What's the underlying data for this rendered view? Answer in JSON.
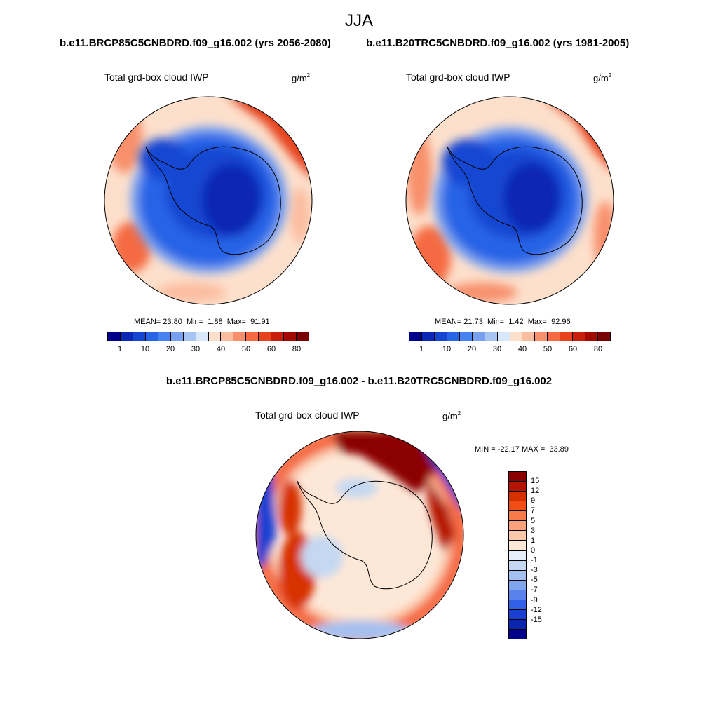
{
  "season": "JJA",
  "panels": [
    {
      "title": "b.e11.BRCP85C5CNBDRD.f09_g16.002 (yrs 2056-2080)",
      "variable": "Total grd-box cloud IWP",
      "units_base": "g/m",
      "units_exp": "2",
      "stats": {
        "mean_label": "MEAN=",
        "mean": "23.80",
        "min_label": "Min=",
        "min": "1.88",
        "max_label": "Max=",
        "max": "91.91"
      }
    },
    {
      "title": "b.e11.B20TRC5CNBDRD.f09_g16.002 (yrs 1981-2005)",
      "variable": "Total grd-box cloud IWP",
      "units_base": "g/m",
      "units_exp": "2",
      "stats": {
        "mean_label": "MEAN=",
        "mean": "21.73",
        "min_label": "Min=",
        "min": "1.42",
        "max_label": "Max=",
        "max": "92.96"
      }
    }
  ],
  "diff_panel": {
    "title": "b.e11.BRCP85C5CNBDRD.f09_g16.002 - b.e11.B20TRC5CNBDRD.f09_g16.002",
    "variable": "Total grd-box cloud IWP",
    "units_base": "g/m",
    "units_exp": "2",
    "stats": {
      "min_label": "MIN =",
      "min": "-22.17",
      "max_label": "MAX =",
      "max": "33.89"
    }
  },
  "abs_colorbar": {
    "colors": [
      "#00008b",
      "#0a28b4",
      "#1446d2",
      "#2864e6",
      "#4682f0",
      "#78a0f0",
      "#a6c4f4",
      "#d8e8fa",
      "#fde0cc",
      "#fbbda0",
      "#f8906c",
      "#f56a42",
      "#e6421e",
      "#c81e0a",
      "#a00a00",
      "#780000"
    ],
    "labels": [
      "1",
      "10",
      "20",
      "30",
      "40",
      "50",
      "60",
      "80"
    ]
  },
  "diff_colorbar": {
    "colors": [
      "#8b0000",
      "#b41400",
      "#d73000",
      "#f04e14",
      "#f77a48",
      "#fba27c",
      "#fcc8aa",
      "#fde8d8",
      "#e6eef8",
      "#c4d8f2",
      "#a4c0f0",
      "#80a4ee",
      "#5a82ec",
      "#3260e6",
      "#1a40d2",
      "#0a24b0",
      "#00008b"
    ],
    "labels": [
      "15",
      "12",
      "9",
      "7",
      "5",
      "3",
      "1",
      "0",
      "-1",
      "-3",
      "-5",
      "-7",
      "-9",
      "-12",
      "-15"
    ]
  },
  "colors": {
    "ocean_blue": "#2864e6",
    "deep_blue": "#0a28b4",
    "warm_red": "#e6421e",
    "dark_red": "#8b0000"
  }
}
